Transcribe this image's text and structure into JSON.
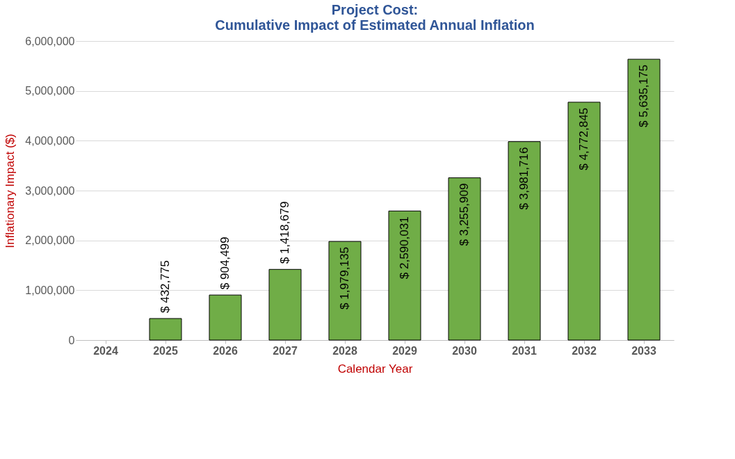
{
  "chart_data": {
    "type": "bar",
    "title": [
      "Project Cost:",
      "Cumulative Impact of Estimated Annual Inflation"
    ],
    "xlabel": "Calendar Year",
    "ylabel": "Inflationary Impact ($)",
    "categories": [
      "2024",
      "2025",
      "2026",
      "2027",
      "2028",
      "2029",
      "2030",
      "2031",
      "2032",
      "2033"
    ],
    "series": [
      {
        "color": "#70ad47",
        "values": [
          null,
          432775,
          904499,
          1418679,
          1979135,
          2590031,
          3255909,
          3981716,
          4772845,
          5635175
        ],
        "value_labels": [
          null,
          "$ 432,775",
          "$ 904,499",
          "$ 1,418,679",
          "$ 1,979,135",
          "$ 2,590,031",
          "$ 3,255,909",
          "$ 3,981,716",
          "$ 4,772,845",
          "$ 5,635,175"
        ]
      }
    ],
    "ylim": [
      0,
      6000000
    ],
    "yticks": [
      0,
      {
        "value": 1000000,
        "label": "1,000,000"
      },
      {
        "value": 2000000,
        "label": "2,000,000"
      },
      {
        "value": 3000000,
        "label": "3,000,000"
      },
      {
        "value": 4000000,
        "label": "4,000,000"
      },
      {
        "value": 5000000,
        "label": "5,000,000"
      },
      {
        "value": 6000000,
        "label": "6,000,000"
      }
    ],
    "grid": "y"
  }
}
